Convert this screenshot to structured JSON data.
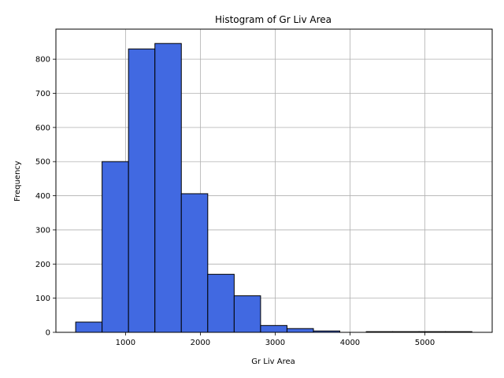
{
  "chart_data": {
    "type": "bar",
    "title": "Histogram of Gr Liv Area",
    "xlabel": "Gr Liv Area",
    "ylabel": "Frequency",
    "bin_edges": [
      334,
      687,
      1040,
      1393,
      1746,
      2099,
      2452,
      2805,
      3158,
      3511,
      3864,
      4217,
      4570,
      4923,
      5276,
      5629
    ],
    "values": [
      30,
      500,
      830,
      846,
      406,
      170,
      107,
      20,
      11,
      4,
      0,
      2,
      2,
      2,
      2
    ],
    "xlim": [
      70,
      5900
    ],
    "ylim": [
      0,
      888
    ],
    "xticks": [
      1000,
      2000,
      3000,
      4000,
      5000
    ],
    "yticks": [
      0,
      100,
      200,
      300,
      400,
      500,
      600,
      700,
      800
    ],
    "grid": true,
    "bar_color": "#4169e1",
    "edge_color": "#000000"
  }
}
